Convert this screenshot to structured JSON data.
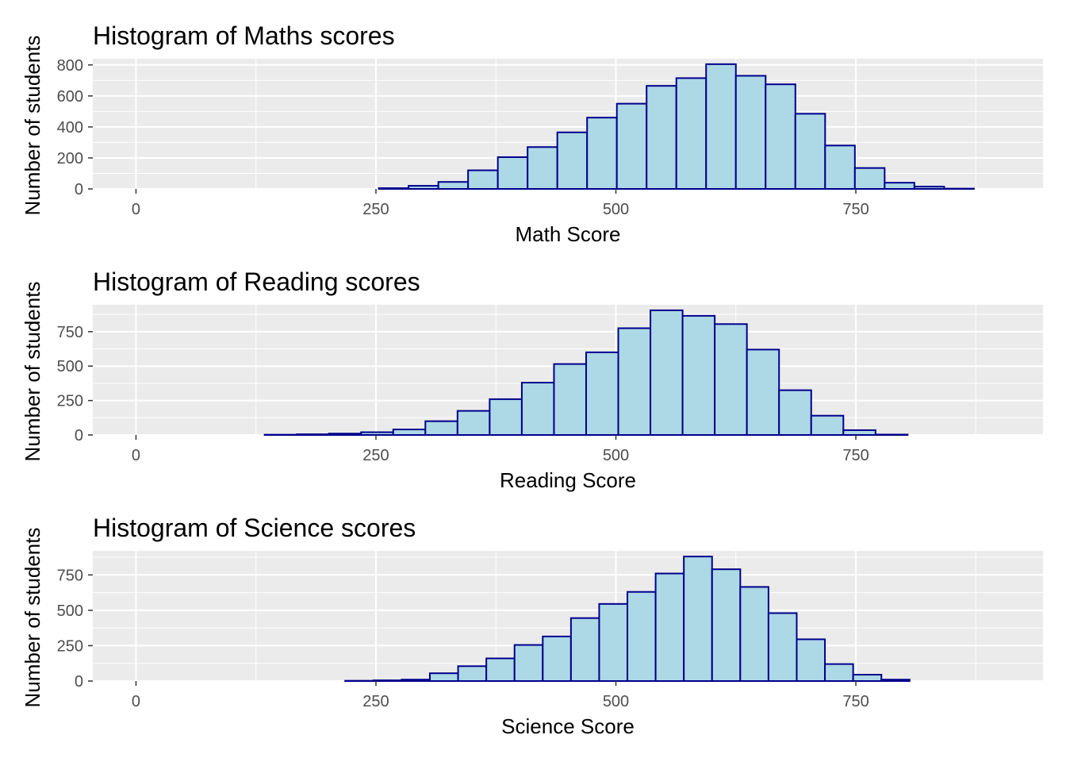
{
  "chart_data": [
    {
      "type": "bar",
      "title": "Histogram of Maths scores",
      "xlabel": "Math Score",
      "ylabel": "Number of students",
      "xlim": [
        -45,
        945
      ],
      "ylim": [
        0,
        840
      ],
      "xticks": [
        0,
        250,
        500,
        750
      ],
      "yticks": [
        0,
        200,
        400,
        600,
        800
      ],
      "bin_width": 31,
      "bin_start": 253,
      "values": [
        5,
        20,
        45,
        120,
        205,
        270,
        365,
        460,
        550,
        665,
        715,
        805,
        730,
        675,
        485,
        280,
        135,
        40,
        15,
        2
      ],
      "grid": true,
      "colors": {
        "fill": "#add8e6",
        "outline": "#00008b",
        "panel": "#ebebeb",
        "grid": "#ffffff"
      }
    },
    {
      "type": "bar",
      "title": "Histogram of Reading scores",
      "xlabel": "Reading Score",
      "ylabel": "Number of students",
      "xlim": [
        -45,
        945
      ],
      "ylim": [
        0,
        945
      ],
      "xticks": [
        0,
        250,
        500,
        750
      ],
      "yticks": [
        0,
        250,
        500,
        750
      ],
      "bin_width": 33.5,
      "bin_start": 134,
      "values": [
        2,
        5,
        10,
        20,
        40,
        100,
        175,
        260,
        380,
        515,
        600,
        775,
        905,
        865,
        805,
        620,
        325,
        140,
        35,
        3
      ],
      "grid": true,
      "colors": {
        "fill": "#add8e6",
        "outline": "#00008b",
        "panel": "#ebebeb",
        "grid": "#ffffff"
      }
    },
    {
      "type": "bar",
      "title": "Histogram of Science scores",
      "xlabel": "Science Score",
      "ylabel": "Number of students",
      "xlim": [
        -45,
        945
      ],
      "ylim": [
        0,
        920
      ],
      "xticks": [
        0,
        250,
        500,
        750
      ],
      "yticks": [
        0,
        250,
        500,
        750
      ],
      "bin_width": 29.4,
      "bin_start": 218,
      "values": [
        2,
        5,
        10,
        55,
        105,
        160,
        255,
        315,
        445,
        545,
        630,
        760,
        880,
        790,
        665,
        480,
        295,
        120,
        45,
        10
      ],
      "grid": true,
      "colors": {
        "fill": "#add8e6",
        "outline": "#00008b",
        "panel": "#ebebeb",
        "grid": "#ffffff"
      }
    }
  ]
}
